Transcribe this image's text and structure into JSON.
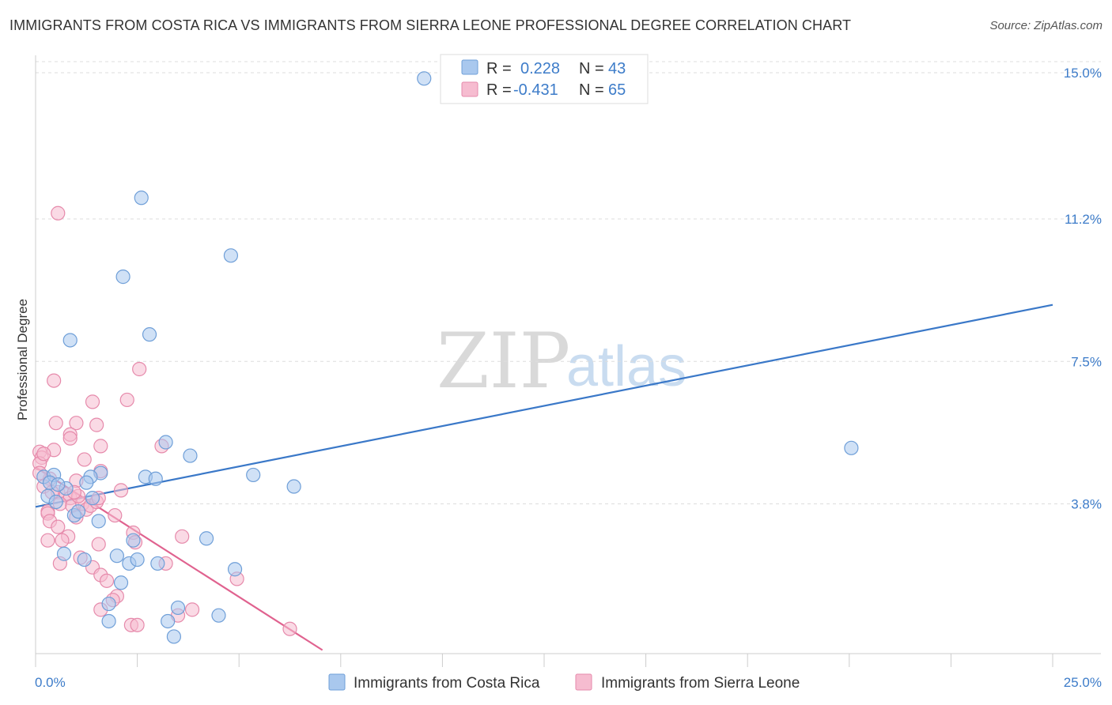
{
  "header": {
    "title": "IMMIGRANTS FROM COSTA RICA VS IMMIGRANTS FROM SIERRA LEONE PROFESSIONAL DEGREE CORRELATION CHART",
    "source": "Source: ZipAtlas.com"
  },
  "watermark": {
    "zip": "ZIP",
    "atlas": "atlas"
  },
  "colors": {
    "blue_fill": "#a9c8ee",
    "blue_stroke": "#6f9fd8",
    "blue_line": "#3a78c8",
    "pink_fill": "#f6bcd0",
    "pink_stroke": "#e68aab",
    "pink_line": "#e0628f",
    "tick_text": "#3d7cc9",
    "grid": "#dddddd"
  },
  "legend": {
    "rows": [
      {
        "r_label": "R =",
        "r_value": "0.228",
        "n_label": "N =",
        "n_value": "43"
      },
      {
        "r_label": "R =",
        "r_value": "-0.431",
        "n_label": "N =",
        "n_value": "65"
      }
    ]
  },
  "chart_data": {
    "type": "scatter",
    "title": "IMMIGRANTS FROM COSTA RICA VS IMMIGRANTS FROM SIERRA LEONE PROFESSIONAL DEGREE CORRELATION CHART",
    "xlabel": "",
    "ylabel": "Professional Degree",
    "xlim": [
      0,
      25
    ],
    "ylim": [
      0,
      15.5
    ],
    "x_tick_labels": [
      "0.0%",
      "25.0%"
    ],
    "y_ticks": [
      3.8,
      7.5,
      11.2,
      15.0
    ],
    "y_tick_labels": [
      "3.8%",
      "7.5%",
      "11.2%",
      "15.0%"
    ],
    "legend_position": "top-center",
    "series": [
      {
        "name": "Immigrants from Costa Rica",
        "R": 0.228,
        "N": 43,
        "trend": {
          "x": [
            0,
            25
          ],
          "y": [
            3.72,
            8.97
          ]
        },
        "points": [
          [
            9.55,
            14.85
          ],
          [
            2.6,
            11.75
          ],
          [
            4.8,
            10.25
          ],
          [
            2.15,
            9.7
          ],
          [
            0.85,
            8.05
          ],
          [
            2.8,
            8.2
          ],
          [
            3.2,
            5.4
          ],
          [
            3.8,
            5.05
          ],
          [
            1.6,
            4.6
          ],
          [
            1.35,
            4.5
          ],
          [
            2.7,
            4.5
          ],
          [
            2.95,
            4.45
          ],
          [
            5.35,
            4.55
          ],
          [
            6.35,
            4.25
          ],
          [
            20.05,
            5.25
          ],
          [
            0.2,
            4.5
          ],
          [
            0.45,
            4.55
          ],
          [
            0.3,
            4.0
          ],
          [
            0.35,
            4.35
          ],
          [
            0.5,
            3.85
          ],
          [
            0.75,
            4.2
          ],
          [
            0.95,
            3.5
          ],
          [
            1.05,
            3.6
          ],
          [
            1.25,
            4.35
          ],
          [
            1.4,
            3.95
          ],
          [
            1.55,
            3.35
          ],
          [
            0.7,
            2.5
          ],
          [
            1.2,
            2.35
          ],
          [
            2.4,
            2.85
          ],
          [
            4.2,
            2.9
          ],
          [
            2.0,
            2.45
          ],
          [
            2.3,
            2.25
          ],
          [
            2.5,
            2.35
          ],
          [
            3.0,
            2.25
          ],
          [
            4.9,
            2.1
          ],
          [
            2.1,
            1.75
          ],
          [
            1.8,
            1.2
          ],
          [
            3.5,
            1.1
          ],
          [
            4.5,
            0.9
          ],
          [
            1.8,
            0.75
          ],
          [
            3.25,
            0.75
          ],
          [
            3.4,
            0.35
          ],
          [
            0.55,
            4.3
          ]
        ]
      },
      {
        "name": "Immigrants from Sierra Leone",
        "R": -0.431,
        "N": 65,
        "trend": {
          "x": [
            0,
            7.05
          ],
          "y": [
            4.75,
            0.0
          ]
        },
        "points": [
          [
            0.55,
            11.35
          ],
          [
            2.55,
            7.3
          ],
          [
            0.45,
            7.0
          ],
          [
            2.25,
            6.5
          ],
          [
            1.4,
            6.45
          ],
          [
            0.5,
            5.9
          ],
          [
            1.0,
            5.9
          ],
          [
            1.5,
            5.85
          ],
          [
            0.85,
            5.6
          ],
          [
            0.85,
            5.5
          ],
          [
            1.6,
            5.3
          ],
          [
            3.1,
            5.3
          ],
          [
            0.45,
            5.2
          ],
          [
            0.1,
            5.15
          ],
          [
            0.15,
            5.0
          ],
          [
            0.1,
            4.85
          ],
          [
            1.2,
            4.95
          ],
          [
            1.6,
            4.65
          ],
          [
            0.35,
            4.45
          ],
          [
            1.0,
            4.4
          ],
          [
            2.1,
            4.15
          ],
          [
            0.2,
            4.25
          ],
          [
            0.55,
            4.1
          ],
          [
            0.75,
            4.05
          ],
          [
            0.85,
            3.95
          ],
          [
            0.6,
            3.8
          ],
          [
            0.9,
            3.75
          ],
          [
            1.15,
            3.8
          ],
          [
            1.25,
            3.65
          ],
          [
            1.35,
            3.75
          ],
          [
            1.5,
            3.85
          ],
          [
            1.55,
            3.95
          ],
          [
            1.95,
            3.5
          ],
          [
            1.0,
            3.45
          ],
          [
            0.3,
            3.6
          ],
          [
            0.3,
            3.55
          ],
          [
            0.35,
            3.35
          ],
          [
            0.55,
            3.2
          ],
          [
            0.8,
            2.95
          ],
          [
            0.65,
            2.85
          ],
          [
            0.3,
            2.85
          ],
          [
            1.55,
            2.75
          ],
          [
            2.4,
            3.05
          ],
          [
            2.45,
            2.8
          ],
          [
            3.6,
            2.95
          ],
          [
            1.1,
            2.4
          ],
          [
            1.4,
            2.15
          ],
          [
            0.6,
            2.25
          ],
          [
            3.2,
            2.25
          ],
          [
            1.6,
            1.95
          ],
          [
            1.75,
            1.8
          ],
          [
            4.95,
            1.85
          ],
          [
            2.0,
            1.4
          ],
          [
            1.6,
            1.05
          ],
          [
            1.9,
            1.3
          ],
          [
            3.5,
            0.9
          ],
          [
            3.85,
            1.05
          ],
          [
            2.35,
            0.65
          ],
          [
            2.5,
            0.65
          ],
          [
            6.25,
            0.55
          ],
          [
            0.1,
            4.6
          ],
          [
            0.4,
            4.1
          ],
          [
            1.05,
            4.0
          ],
          [
            0.2,
            5.1
          ],
          [
            0.95,
            4.1
          ]
        ]
      }
    ]
  }
}
